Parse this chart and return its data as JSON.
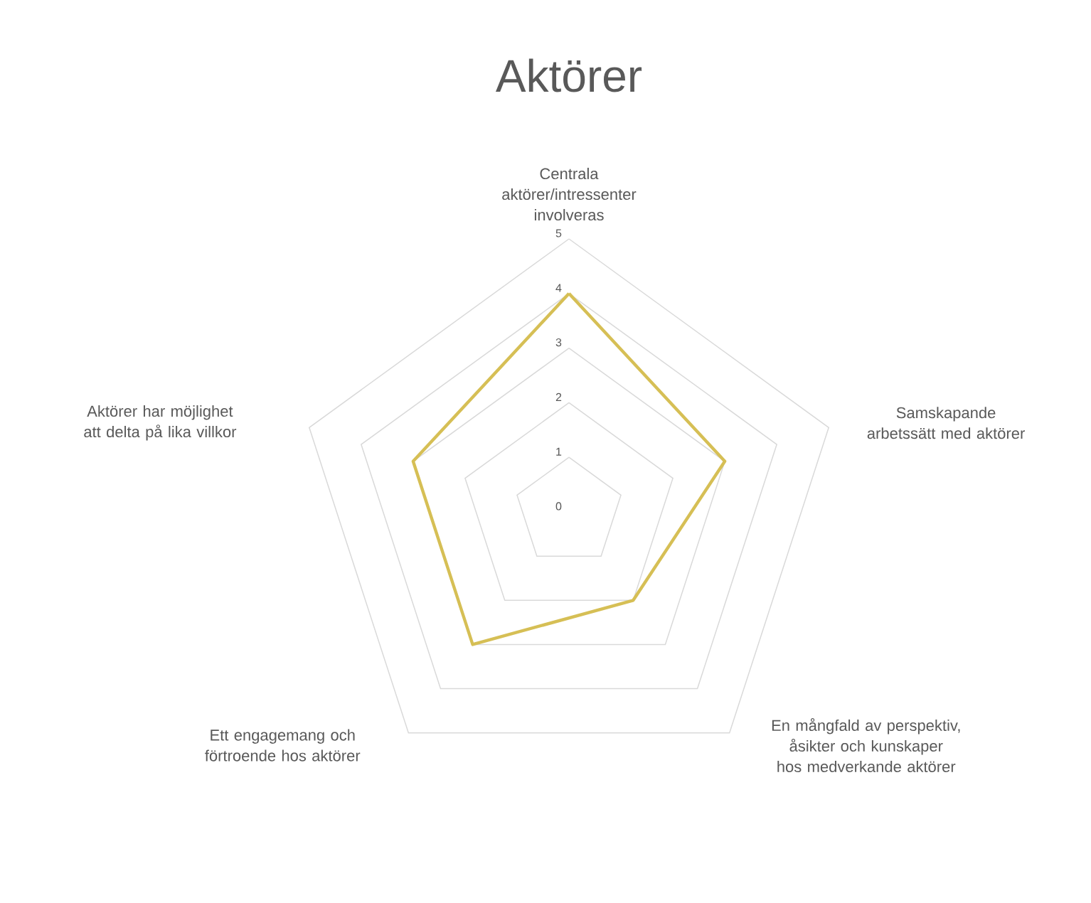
{
  "chart_data": {
    "type": "radar",
    "title": "Aktörer",
    "categories": [
      "Centrala aktörer/intressenter involveras",
      "Samskapande arbetssätt med aktörer",
      "En mångfald av perspektiv, åsikter och kunskaper hos medverkande aktörer",
      "Ett engagemang och förtroende hos aktörer",
      "Aktörer har möjlighet att delta på lika villkor"
    ],
    "series": [
      {
        "color": "#d6bf55",
        "values": [
          4,
          3,
          2,
          3,
          3
        ]
      }
    ],
    "ylim": [
      0,
      5
    ],
    "yticks": [
      0,
      1,
      2,
      3,
      4,
      5
    ],
    "grid": true
  }
}
